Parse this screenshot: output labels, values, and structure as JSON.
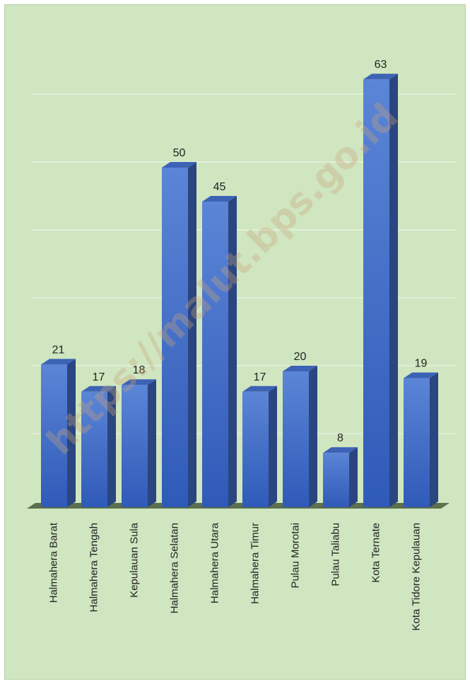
{
  "chart_data": {
    "type": "bar",
    "categories": [
      "Halmahera Barat",
      "Halmahera Tengah",
      "Kepulauan Sula",
      "Halmahera Selatan",
      "Halmahera Utara",
      "Halmahera Timur",
      "Pulau Morotai",
      "Pulau Taliabu",
      "Kota Ternate",
      "Kota Tidore Kepulauan"
    ],
    "values": [
      21,
      17,
      18,
      50,
      45,
      17,
      20,
      8,
      63,
      19
    ],
    "title": "",
    "xlabel": "",
    "ylabel": "",
    "ylim": [
      0,
      70
    ],
    "grid": true,
    "style": "3d-column",
    "colors": {
      "background": "#cfe6c0",
      "bar_front_top": "#5b85d6",
      "bar_front_bottom": "#2f5ab8",
      "bar_side": "#2a4580",
      "bar_top": "#3d63b5",
      "floor": "#5c6f4e",
      "grid": "#e6f1de"
    }
  },
  "watermark": "https://malut.bps.go.id"
}
